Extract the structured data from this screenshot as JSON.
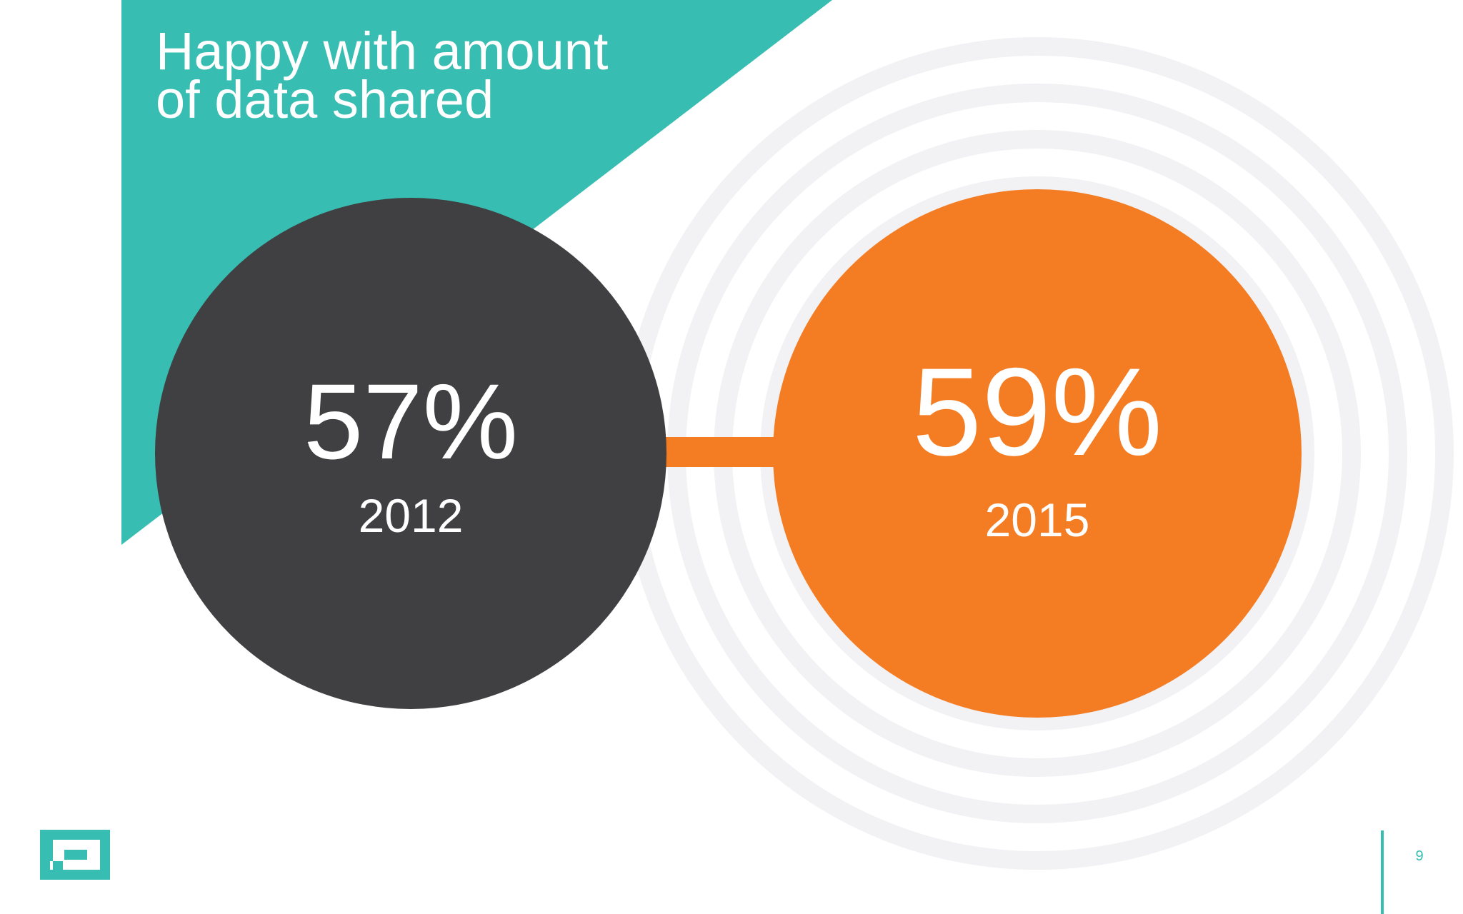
{
  "slide": {
    "title_line1": "Happy with amount",
    "title_line2": "of data shared",
    "page_number": "9"
  },
  "stats": [
    {
      "percent": "57%",
      "year": "2012",
      "color": "#403f41"
    },
    {
      "percent": "59%",
      "year": "2015",
      "color": "#f47d23"
    }
  ],
  "colors": {
    "accent_teal": "#37bdb1",
    "dark_circle": "#403f41",
    "orange_circle": "#f47d23",
    "ring": "#f2f1f4"
  },
  "logo": {
    "icon": "bracket-logo-icon"
  }
}
